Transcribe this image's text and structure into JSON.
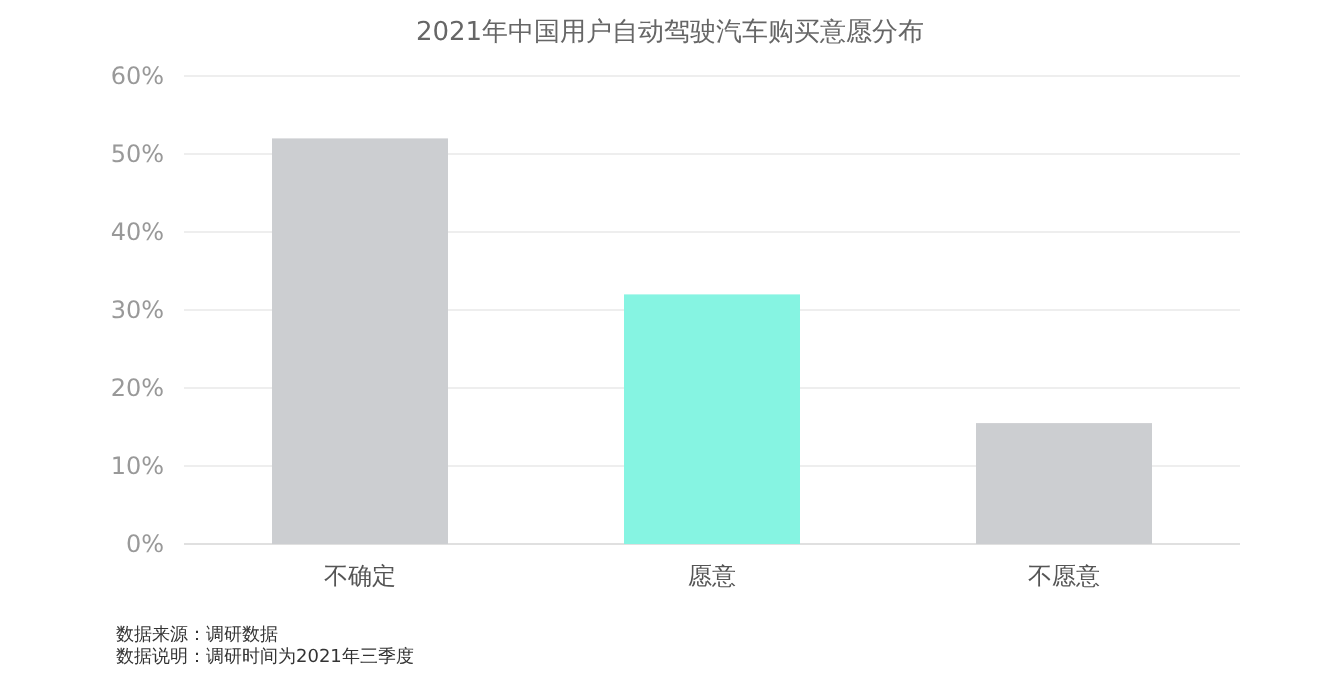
{
  "chart_data": {
    "type": "bar",
    "title": "2021年中国用户自动驾驶汽车购买意愿分布",
    "categories": [
      "不确定",
      "愿意",
      "不愿意"
    ],
    "values": [
      52,
      32,
      15.5
    ],
    "colors": [
      "#ccced1",
      "#86f4e2",
      "#ccced1"
    ],
    "ylim": [
      0,
      60
    ],
    "yticks": [
      {
        "value": 0,
        "label": "0%"
      },
      {
        "value": 10,
        "label": "10%"
      },
      {
        "value": 20,
        "label": "20%"
      },
      {
        "value": 30,
        "label": "30%"
      },
      {
        "value": 40,
        "label": "40%"
      },
      {
        "value": 50,
        "label": "50%"
      },
      {
        "value": 60,
        "label": "60%"
      }
    ],
    "grid": "y",
    "annotations": [
      "数据来源：调研数据",
      "数据说明：调研时间为2021年三季度"
    ]
  }
}
